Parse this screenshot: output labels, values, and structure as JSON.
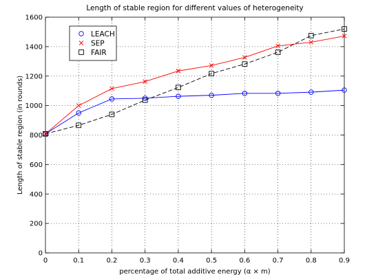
{
  "chart_data": {
    "type": "line",
    "title": "Length of stable region for different values of heterogeneity",
    "xlabel": "percentage of total additive energy (α × m)",
    "ylabel": "Length of stable region (in rounds)",
    "x": [
      0,
      0.1,
      0.2,
      0.3,
      0.4,
      0.5,
      0.6,
      0.7,
      0.8,
      0.9
    ],
    "xlim": [
      0,
      0.9
    ],
    "ylim": [
      0,
      1600
    ],
    "xticks": [
      "0",
      "0.1",
      "0.2",
      "0.3",
      "0.4",
      "0.5",
      "0.6",
      "0.7",
      "0.8",
      "0.9"
    ],
    "yticks": [
      "0",
      "200",
      "400",
      "600",
      "800",
      "1000",
      "1200",
      "1400",
      "1600"
    ],
    "grid": true,
    "legend_position": "top-left",
    "series": [
      {
        "name": "LEACH",
        "color": "#0000ff",
        "line_style": "solid",
        "marker": "circle",
        "values": [
          808,
          950,
          1045,
          1050,
          1063,
          1070,
          1083,
          1083,
          1091,
          1105
        ]
      },
      {
        "name": "SEP",
        "color": "#ff0000",
        "line_style": "solid",
        "marker": "x",
        "values": [
          808,
          1000,
          1115,
          1163,
          1235,
          1272,
          1327,
          1405,
          1430,
          1472
        ]
      },
      {
        "name": "FAIR",
        "color": "#000000",
        "line_style": "dashed",
        "marker": "square",
        "values": [
          808,
          866,
          940,
          1037,
          1123,
          1217,
          1282,
          1362,
          1475,
          1520
        ]
      }
    ]
  }
}
